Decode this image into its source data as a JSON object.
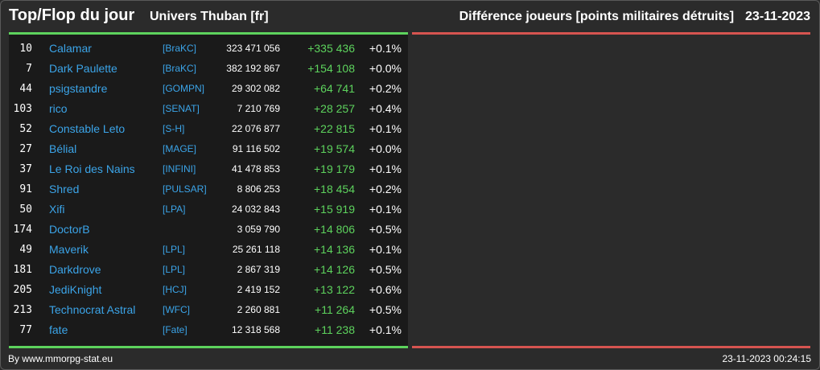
{
  "header": {
    "title": "Top/Flop du jour",
    "subtitle": "Univers Thuban [fr]",
    "right_title": "Différence joueurs [points militaires détruits]",
    "date": "23-11-2023"
  },
  "colors": {
    "green": "#5dd35d",
    "red": "#d65450",
    "link": "#3ba4e8",
    "background": "#2b2b2b",
    "panel": "#1a1a1a"
  },
  "rows": [
    {
      "rank": "10",
      "name": "Calamar",
      "alliance": "[BraKC]",
      "points": "323 471 056",
      "diff": "+335 436",
      "pct": "+0.1%"
    },
    {
      "rank": "7",
      "name": "Dark Paulette",
      "alliance": "[BraKC]",
      "points": "382 192 867",
      "diff": "+154 108",
      "pct": "+0.0%"
    },
    {
      "rank": "44",
      "name": "psigstandre",
      "alliance": "[GOMPN]",
      "points": "29 302 082",
      "diff": "+64 741",
      "pct": "+0.2%"
    },
    {
      "rank": "103",
      "name": "rico",
      "alliance": "[SENAT]",
      "points": "7 210 769",
      "diff": "+28 257",
      "pct": "+0.4%"
    },
    {
      "rank": "52",
      "name": "Constable Leto",
      "alliance": "[S-H]",
      "points": "22 076 877",
      "diff": "+22 815",
      "pct": "+0.1%"
    },
    {
      "rank": "27",
      "name": "Bélial",
      "alliance": "[MAGE]",
      "points": "91 116 502",
      "diff": "+19 574",
      "pct": "+0.0%"
    },
    {
      "rank": "37",
      "name": "Le Roi des Nains",
      "alliance": "[INFINI]",
      "points": "41 478 853",
      "diff": "+19 179",
      "pct": "+0.1%"
    },
    {
      "rank": "91",
      "name": "Shred",
      "alliance": "[PULSAR]",
      "points": "8 806 253",
      "diff": "+18 454",
      "pct": "+0.2%"
    },
    {
      "rank": "50",
      "name": "Xifi",
      "alliance": "[LPA]",
      "points": "24 032 843",
      "diff": "+15 919",
      "pct": "+0.1%"
    },
    {
      "rank": "174",
      "name": "DoctorB",
      "alliance": "",
      "points": "3 059 790",
      "diff": "+14 806",
      "pct": "+0.5%"
    },
    {
      "rank": "49",
      "name": "Maverik",
      "alliance": "[LPL]",
      "points": "25 261 118",
      "diff": "+14 136",
      "pct": "+0.1%"
    },
    {
      "rank": "181",
      "name": "Darkdrove",
      "alliance": "[LPL]",
      "points": "2 867 319",
      "diff": "+14 126",
      "pct": "+0.5%"
    },
    {
      "rank": "205",
      "name": "JediKnight",
      "alliance": "[HCJ]",
      "points": "2 419 152",
      "diff": "+13 122",
      "pct": "+0.6%"
    },
    {
      "rank": "213",
      "name": "Technocrat Astral",
      "alliance": "[WFC]",
      "points": "2 260 881",
      "diff": "+11 264",
      "pct": "+0.5%"
    },
    {
      "rank": "77",
      "name": "fate",
      "alliance": "[Fate]",
      "points": "12 318 568",
      "diff": "+11 238",
      "pct": "+0.1%"
    }
  ],
  "footer": {
    "source": "By www.mmorpg-stat.eu",
    "timestamp": "23-11-2023 00:24:15"
  }
}
